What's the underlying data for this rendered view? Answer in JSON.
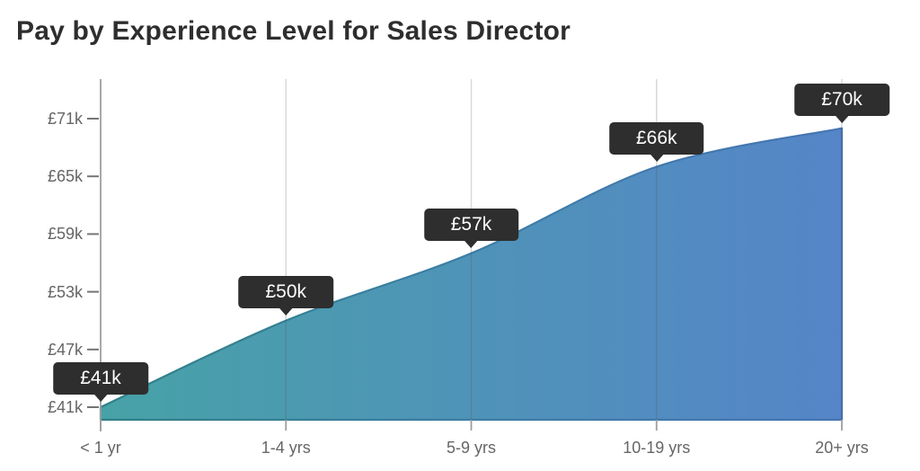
{
  "title": "Pay by Experience Level for Sales Director",
  "chart_data": {
    "type": "area",
    "title": "Pay by Experience Level for Sales Director",
    "categories": [
      "< 1 yr",
      "1-4 yrs",
      "5-9 yrs",
      "10-19 yrs",
      "20+ yrs"
    ],
    "values": [
      41000,
      50000,
      57000,
      66000,
      70000
    ],
    "point_labels": [
      "£41k",
      "£50k",
      "£57k",
      "£66k",
      "£70k"
    ],
    "y_tick_labels": [
      "£71k",
      "£65k",
      "£59k",
      "£53k",
      "£47k",
      "£41k"
    ],
    "y_tick_values": [
      71000,
      65000,
      59000,
      53000,
      47000,
      41000
    ],
    "xlabel": "",
    "ylabel": "",
    "ylim": [
      41000,
      71000
    ],
    "currency": "GBP",
    "grid": "vertical",
    "legend": "none",
    "colors": {
      "area_gradient": [
        "#47A2A7",
        "#4F93B8",
        "#5585C8"
      ],
      "line_gradient": [
        "#2F8186",
        "#3C7EA6",
        "#4674B3"
      ],
      "tooltip_bg": "#2E2E2E",
      "tooltip_text": "#FFFFFF",
      "grid_line": "#D6D6D6",
      "axis_line": "#9E9E9E",
      "y_tick_dash": "#757575",
      "tick_label": "#666666",
      "title_color": "#2E2E2E"
    }
  }
}
